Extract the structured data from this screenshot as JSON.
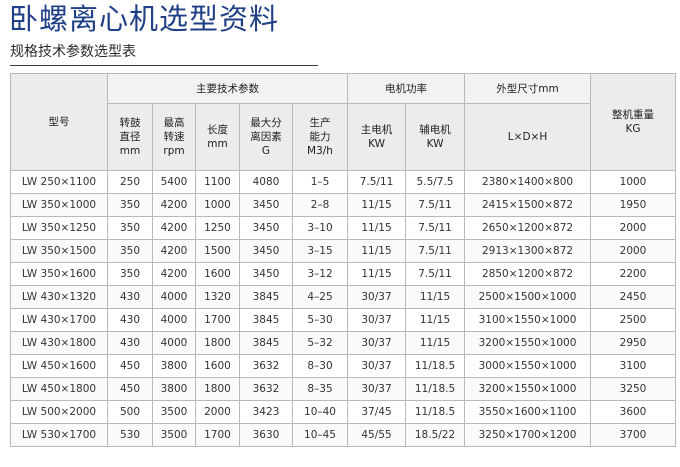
{
  "title": "卧螺离心机选型资料",
  "subtitle": "规格技术参数选型表",
  "groups": {
    "main_params": "主要技术参数",
    "motor_power": "电机功率",
    "dimensions": "外型尺寸mm"
  },
  "headers": {
    "model": "型号",
    "drum_diameter": [
      "转鼓",
      "直径",
      "mm"
    ],
    "max_speed": [
      "最高",
      "转速",
      "rpm"
    ],
    "length": [
      "长度",
      "mm"
    ],
    "max_g": [
      "最大分",
      "离因素",
      "G"
    ],
    "capacity": [
      "生产",
      "能力",
      "M3/h"
    ],
    "main_motor": [
      "主电机",
      "KW"
    ],
    "aux_motor": [
      "辅电机",
      "KW"
    ],
    "lwh": "L×D×H",
    "weight": [
      "整机重量",
      "KG"
    ]
  },
  "rows": [
    [
      "LW 250×1100",
      "250",
      "5400",
      "1100",
      "4080",
      "1–5",
      "7.5/11",
      "5.5/7.5",
      "2380×1400×800",
      "1000"
    ],
    [
      "LW 350×1000",
      "350",
      "4200",
      "1000",
      "3450",
      "2–8",
      "11/15",
      "7.5/11",
      "2415×1500×872",
      "1950"
    ],
    [
      "LW 350×1250",
      "350",
      "4200",
      "1250",
      "3450",
      "3–10",
      "11/15",
      "7.5/11",
      "2650×1200×872",
      "2000"
    ],
    [
      "LW 350×1500",
      "350",
      "4200",
      "1500",
      "3450",
      "3–15",
      "11/15",
      "7.5/11",
      "2913×1300×872",
      "2000"
    ],
    [
      "LW 350×1600",
      "350",
      "4200",
      "1600",
      "3450",
      "3–12",
      "11/15",
      "7.5/11",
      "2850×1200×872",
      "2200"
    ],
    [
      "LW 430×1320",
      "430",
      "4000",
      "1320",
      "3845",
      "4–25",
      "30/37",
      "11/15",
      "2500×1500×1000",
      "2450"
    ],
    [
      "LW 430×1700",
      "430",
      "4000",
      "1700",
      "3845",
      "5–30",
      "30/37",
      "11/15",
      "3100×1550×1000",
      "2500"
    ],
    [
      "LW 430×1800",
      "430",
      "4000",
      "1800",
      "3845",
      "5–32",
      "30/37",
      "11/15",
      "3200×1550×1000",
      "2950"
    ],
    [
      "LW 450×1600",
      "450",
      "3800",
      "1600",
      "3632",
      "8–30",
      "30/37",
      "11/18.5",
      "3000×1550×1000",
      "3100"
    ],
    [
      "LW 450×1800",
      "450",
      "3800",
      "1800",
      "3632",
      "8–35",
      "30/37",
      "11/18.5",
      "3200×1550×1000",
      "3250"
    ],
    [
      "LW 500×2000",
      "500",
      "3500",
      "2000",
      "3423",
      "10–40",
      "37/45",
      "11/18.5",
      "3550×1600×1100",
      "3600"
    ],
    [
      "LW 530×1700",
      "530",
      "3500",
      "1700",
      "3630",
      "10–45",
      "45/55",
      "18.5/22",
      "3250×1700×1200",
      "3700"
    ]
  ]
}
